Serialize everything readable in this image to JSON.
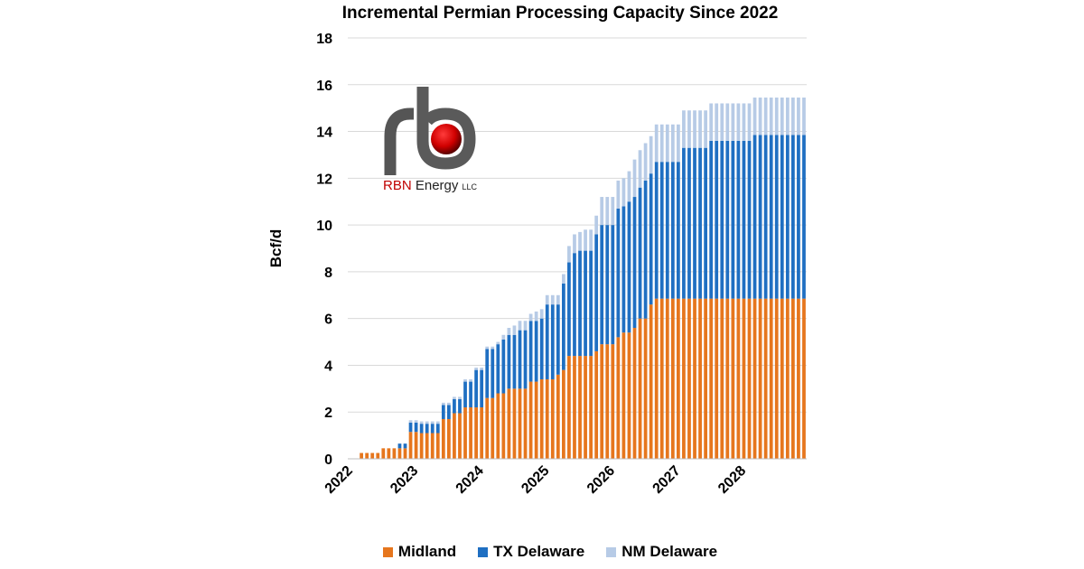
{
  "chart_data": {
    "type": "bar",
    "stacked": true,
    "title": "Incremental Permian Processing Capacity Since 2022",
    "ylabel": "Bcf/d",
    "xlabel": "",
    "ylim": [
      0,
      18
    ],
    "yticks": [
      "0",
      "2",
      "4",
      "6",
      "8",
      "10",
      "12",
      "14",
      "16",
      "18"
    ],
    "x_tick_labels": [
      "2022",
      "2023",
      "2024",
      "2025",
      "2026",
      "2027",
      "2028"
    ],
    "x_period": "monthly, Jan 2022 - Dec 2028",
    "grid": "horizontal",
    "legend_position": "bottom",
    "series": [
      {
        "name": "Midland",
        "color": "#e6761d",
        "values": [
          0,
          0,
          0.25,
          0.25,
          0.25,
          0.25,
          0.45,
          0.45,
          0.45,
          0.45,
          0.45,
          1.15,
          1.15,
          1.1,
          1.1,
          1.1,
          1.1,
          1.7,
          1.7,
          1.95,
          1.95,
          2.2,
          2.2,
          2.2,
          2.2,
          2.6,
          2.6,
          2.8,
          2.8,
          3.0,
          3.0,
          3.0,
          3.0,
          3.3,
          3.3,
          3.4,
          3.4,
          3.4,
          3.6,
          3.8,
          4.4,
          4.4,
          4.4,
          4.4,
          4.4,
          4.6,
          4.9,
          4.9,
          4.9,
          5.2,
          5.4,
          5.4,
          5.6,
          6.0,
          6.0,
          6.6,
          6.85,
          6.85,
          6.85,
          6.85,
          6.85,
          6.85,
          6.85,
          6.85,
          6.85,
          6.85,
          6.85,
          6.85,
          6.85,
          6.85,
          6.85,
          6.85,
          6.85,
          6.85,
          6.85,
          6.85,
          6.85,
          6.85,
          6.85,
          6.85,
          6.85,
          6.85,
          6.85,
          6.85
        ]
      },
      {
        "name": "TX Delaware",
        "color": "#1f6fc2",
        "values": [
          0,
          0,
          0,
          0,
          0,
          0,
          0,
          0,
          0,
          0.2,
          0.2,
          0.4,
          0.4,
          0.4,
          0.4,
          0.4,
          0.4,
          0.6,
          0.6,
          0.6,
          0.6,
          1.1,
          1.1,
          1.6,
          1.6,
          2.1,
          2.1,
          2.1,
          2.3,
          2.3,
          2.3,
          2.5,
          2.5,
          2.6,
          2.6,
          2.6,
          3.2,
          3.2,
          3.0,
          3.7,
          4.0,
          4.4,
          4.5,
          4.5,
          4.5,
          5.0,
          5.1,
          5.1,
          5.1,
          5.5,
          5.4,
          5.6,
          5.6,
          5.6,
          5.9,
          5.6,
          5.85,
          5.85,
          5.85,
          5.85,
          5.85,
          6.45,
          6.45,
          6.45,
          6.45,
          6.45,
          6.75,
          6.75,
          6.75,
          6.75,
          6.75,
          6.75,
          6.75,
          6.75,
          7.0,
          7.0,
          7.0,
          7.0,
          7.0,
          7.0,
          7.0,
          7.0,
          7.0,
          7.0
        ]
      },
      {
        "name": "NM Delaware",
        "color": "#b7cbe6",
        "values": [
          0,
          0,
          0,
          0,
          0,
          0,
          0,
          0,
          0,
          0,
          0,
          0.1,
          0.1,
          0.1,
          0.1,
          0.1,
          0.1,
          0.1,
          0.1,
          0.1,
          0.1,
          0.1,
          0.1,
          0.1,
          0.1,
          0.1,
          0.1,
          0.1,
          0.2,
          0.3,
          0.4,
          0.4,
          0.4,
          0.3,
          0.4,
          0.4,
          0.4,
          0.4,
          0.4,
          0.4,
          0.7,
          0.8,
          0.8,
          0.9,
          0.9,
          0.8,
          1.2,
          1.2,
          1.2,
          1.2,
          1.2,
          1.3,
          1.6,
          1.6,
          1.6,
          1.6,
          1.6,
          1.6,
          1.6,
          1.6,
          1.6,
          1.6,
          1.6,
          1.6,
          1.6,
          1.6,
          1.6,
          1.6,
          1.6,
          1.6,
          1.6,
          1.6,
          1.6,
          1.6,
          1.6,
          1.6,
          1.6,
          1.6,
          1.6,
          1.6,
          1.6,
          1.6,
          1.6,
          1.6
        ]
      }
    ]
  },
  "logo": {
    "name": "RBN",
    "rest": "Energy",
    "suffix": "LLC"
  }
}
